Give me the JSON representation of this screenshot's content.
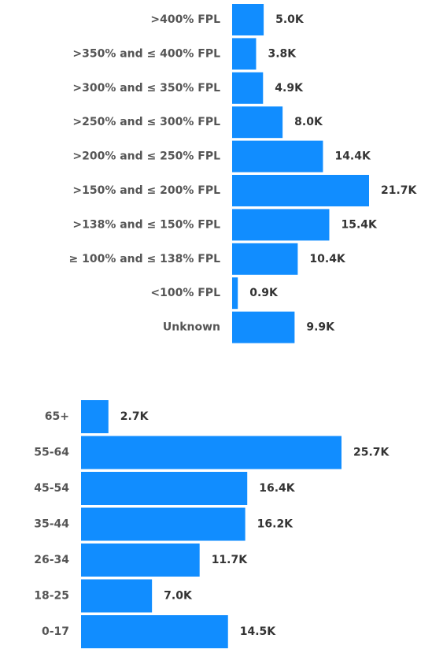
{
  "chart_data": [
    {
      "type": "bar",
      "orientation": "horizontal",
      "color": "#118dff",
      "categories": [
        ">400% FPL",
        ">350% and ≤ 400% FPL",
        ">300% and ≤ 350% FPL",
        ">250% and ≤ 300% FPL",
        ">200% and ≤ 250% FPL",
        ">150% and ≤ 200% FPL",
        ">138% and ≤ 150% FPL",
        "≥ 100% and ≤ 138% FPL",
        "<100% FPL",
        "Unknown"
      ],
      "values": [
        5000,
        3800,
        4900,
        8000,
        14400,
        21700,
        15400,
        10400,
        900,
        9900
      ],
      "value_labels": [
        "5.0K",
        "3.8K",
        "4.9K",
        "8.0K",
        "14.4K",
        "21.7K",
        "15.4K",
        "10.4K",
        "0.9K",
        "9.9K"
      ]
    },
    {
      "type": "bar",
      "orientation": "horizontal",
      "color": "#118dff",
      "categories": [
        "65+",
        "55-64",
        "45-54",
        "35-44",
        "26-34",
        "18-25",
        "0-17"
      ],
      "values": [
        2700,
        25700,
        16400,
        16200,
        11700,
        7000,
        14500
      ],
      "value_labels": [
        "2.7K",
        "25.7K",
        "16.4K",
        "16.2K",
        "11.7K",
        "7.0K",
        "14.5K"
      ]
    }
  ]
}
